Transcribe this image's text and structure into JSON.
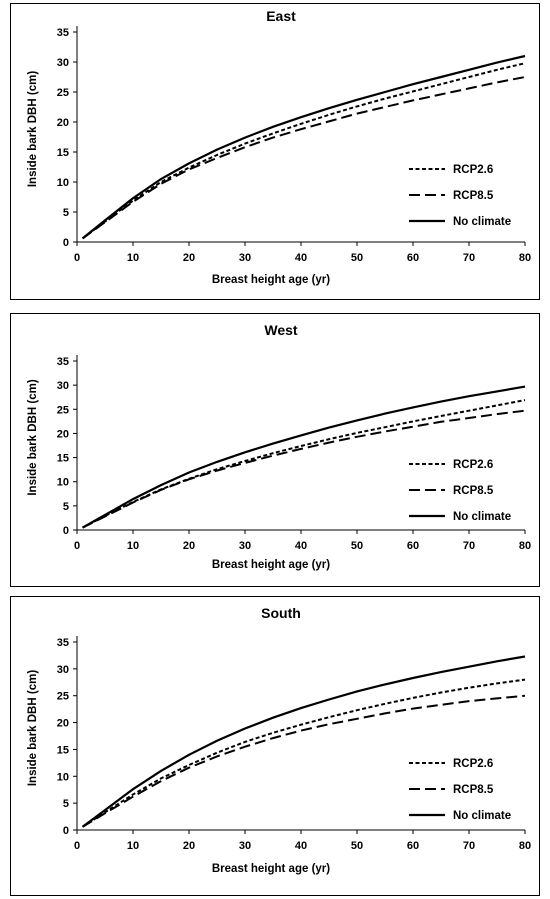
{
  "chart_data": [
    {
      "type": "line",
      "title": "East",
      "xlabel": "Breast height age (yr)",
      "ylabel": "Inside bark DBH (cm)",
      "xlim": [
        0,
        80
      ],
      "ylim": [
        0,
        35
      ],
      "xticks": [
        "0",
        "10",
        "20",
        "30",
        "40",
        "50",
        "60",
        "70",
        "80"
      ],
      "yticks": [
        "0",
        "5",
        "10",
        "15",
        "20",
        "25",
        "30",
        "35"
      ],
      "legend_position": "right",
      "x": [
        1,
        5,
        10,
        15,
        20,
        25,
        30,
        35,
        40,
        45,
        50,
        55,
        60,
        65,
        70,
        75,
        80
      ],
      "series": [
        {
          "name": "RCP2.6",
          "style": "dotted",
          "values": [
            0.6,
            3.4,
            6.9,
            10.0,
            12.4,
            14.5,
            16.4,
            18.1,
            19.7,
            21.2,
            22.6,
            23.9,
            25.1,
            26.3,
            27.5,
            28.7,
            29.8
          ]
        },
        {
          "name": "RCP8.5",
          "style": "dashed",
          "values": [
            0.6,
            3.3,
            6.7,
            9.7,
            12.1,
            14.0,
            15.8,
            17.4,
            18.8,
            20.1,
            21.4,
            22.5,
            23.6,
            24.6,
            25.6,
            26.6,
            27.5
          ]
        },
        {
          "name": "No climate",
          "style": "solid",
          "values": [
            0.6,
            3.6,
            7.3,
            10.5,
            13.1,
            15.4,
            17.4,
            19.2,
            20.8,
            22.3,
            23.7,
            25.0,
            26.3,
            27.5,
            28.7,
            29.9,
            31.0
          ]
        }
      ]
    },
    {
      "type": "line",
      "title": "West",
      "xlabel": "Breast height age (yr)",
      "ylabel": "Inside bark DBH (cm)",
      "xlim": [
        0,
        80
      ],
      "ylim": [
        0,
        35
      ],
      "xticks": [
        "0",
        "10",
        "20",
        "30",
        "40",
        "50",
        "60",
        "70",
        "80"
      ],
      "yticks": [
        "0",
        "5",
        "10",
        "15",
        "20",
        "25",
        "30",
        "35"
      ],
      "legend_position": "bottom-right",
      "x": [
        1,
        5,
        10,
        15,
        20,
        25,
        30,
        35,
        40,
        45,
        50,
        55,
        60,
        65,
        70,
        75,
        80
      ],
      "series": [
        {
          "name": "RCP2.6",
          "style": "dotted",
          "values": [
            0.5,
            2.9,
            5.8,
            8.4,
            10.6,
            12.6,
            14.3,
            15.9,
            17.4,
            18.8,
            20.1,
            21.3,
            22.5,
            23.6,
            24.7,
            25.8,
            26.9
          ]
        },
        {
          "name": "RCP8.5",
          "style": "dashed",
          "values": [
            0.5,
            2.8,
            5.7,
            8.3,
            10.5,
            12.3,
            13.9,
            15.4,
            16.8,
            18.1,
            19.3,
            20.4,
            21.4,
            22.4,
            23.2,
            24.0,
            24.7
          ]
        },
        {
          "name": "No climate",
          "style": "solid",
          "values": [
            0.5,
            3.1,
            6.4,
            9.3,
            11.9,
            14.1,
            16.1,
            17.9,
            19.6,
            21.2,
            22.7,
            24.1,
            25.4,
            26.6,
            27.7,
            28.7,
            29.7
          ]
        }
      ]
    },
    {
      "type": "line",
      "title": "South",
      "xlabel": "Breast height age (yr)",
      "ylabel": "Inside bark DBH (cm)",
      "xlim": [
        0,
        80
      ],
      "ylim": [
        0,
        35
      ],
      "xticks": [
        "0",
        "10",
        "20",
        "30",
        "40",
        "50",
        "60",
        "70",
        "80"
      ],
      "yticks": [
        "0",
        "5",
        "10",
        "15",
        "20",
        "25",
        "30",
        "35"
      ],
      "legend_position": "bottom-right",
      "x": [
        1,
        5,
        10,
        15,
        20,
        25,
        30,
        35,
        40,
        45,
        50,
        55,
        60,
        65,
        70,
        75,
        80
      ],
      "series": [
        {
          "name": "RCP2.6",
          "style": "dotted",
          "values": [
            0.6,
            3.3,
            6.6,
            9.6,
            12.1,
            14.4,
            16.4,
            18.1,
            19.6,
            21.0,
            22.3,
            23.5,
            24.6,
            25.6,
            26.5,
            27.3,
            28.0
          ]
        },
        {
          "name": "RCP8.5",
          "style": "dashed",
          "values": [
            0.6,
            3.1,
            6.2,
            9.1,
            11.6,
            13.7,
            15.5,
            17.1,
            18.5,
            19.7,
            20.7,
            21.7,
            22.6,
            23.3,
            24.0,
            24.5,
            25.0
          ]
        },
        {
          "name": "No climate",
          "style": "solid",
          "values": [
            0.6,
            3.7,
            7.6,
            11.0,
            14.0,
            16.6,
            18.9,
            20.9,
            22.7,
            24.3,
            25.8,
            27.1,
            28.3,
            29.4,
            30.4,
            31.4,
            32.3
          ]
        }
      ]
    }
  ]
}
